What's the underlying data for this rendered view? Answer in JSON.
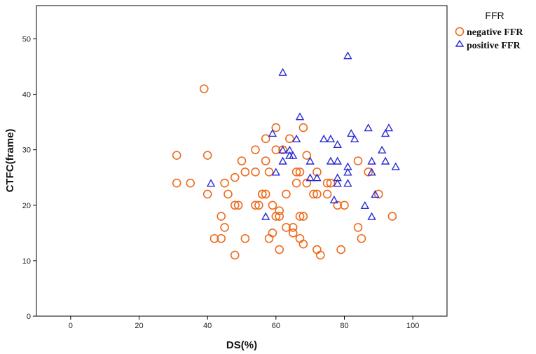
{
  "chart_data": {
    "type": "scatter",
    "xlabel": "DS(%)",
    "ylabel": "CTFC(frame)",
    "xlim": [
      -10,
      110
    ],
    "ylim": [
      0,
      56
    ],
    "xticks": [
      "0",
      "20",
      "40",
      "60",
      "80",
      "100"
    ],
    "yticks": [
      "0",
      "10",
      "20",
      "30",
      "40",
      "50"
    ],
    "grid": false,
    "legend": {
      "title": "FFR",
      "position": "top-right"
    },
    "series": [
      {
        "name": "negative FFR",
        "marker": "circle",
        "color": "#ee6a1c",
        "points": [
          [
            31,
            29
          ],
          [
            31,
            24
          ],
          [
            35,
            24
          ],
          [
            39,
            41
          ],
          [
            40,
            29
          ],
          [
            40,
            22
          ],
          [
            42,
            14
          ],
          [
            44,
            14
          ],
          [
            44,
            18
          ],
          [
            45,
            24
          ],
          [
            45,
            16
          ],
          [
            46,
            22
          ],
          [
            48,
            20
          ],
          [
            48,
            11
          ],
          [
            48,
            25
          ],
          [
            49,
            20
          ],
          [
            50,
            28
          ],
          [
            51,
            26
          ],
          [
            51,
            14
          ],
          [
            54,
            30
          ],
          [
            54,
            26
          ],
          [
            54,
            20
          ],
          [
            55,
            20
          ],
          [
            56,
            22
          ],
          [
            56,
            22
          ],
          [
            57,
            32
          ],
          [
            57,
            22
          ],
          [
            57,
            28
          ],
          [
            58,
            26
          ],
          [
            58,
            14
          ],
          [
            59,
            15
          ],
          [
            59,
            20
          ],
          [
            60,
            34
          ],
          [
            60,
            30
          ],
          [
            60,
            18
          ],
          [
            61,
            19
          ],
          [
            61,
            18
          ],
          [
            61,
            12
          ],
          [
            62,
            30
          ],
          [
            63,
            22
          ],
          [
            63,
            16
          ],
          [
            64,
            32
          ],
          [
            65,
            16
          ],
          [
            65,
            15
          ],
          [
            66,
            26
          ],
          [
            66,
            24
          ],
          [
            67,
            26
          ],
          [
            67,
            18
          ],
          [
            67,
            14
          ],
          [
            68,
            34
          ],
          [
            68,
            18
          ],
          [
            68,
            13
          ],
          [
            69,
            24
          ],
          [
            69,
            29
          ],
          [
            71,
            22
          ],
          [
            72,
            26
          ],
          [
            72,
            22
          ],
          [
            72,
            12
          ],
          [
            73,
            11
          ],
          [
            75,
            24
          ],
          [
            75,
            22
          ],
          [
            76,
            24
          ],
          [
            78,
            20
          ],
          [
            79,
            12
          ],
          [
            80,
            20
          ],
          [
            84,
            28
          ],
          [
            84,
            16
          ],
          [
            85,
            14
          ],
          [
            87,
            26
          ],
          [
            90,
            22
          ],
          [
            94,
            18
          ]
        ]
      },
      {
        "name": "positive FFR",
        "marker": "triangle",
        "color": "#2b2bd6",
        "points": [
          [
            41,
            24
          ],
          [
            57,
            18
          ],
          [
            59,
            33
          ],
          [
            60,
            26
          ],
          [
            62,
            44
          ],
          [
            62,
            28
          ],
          [
            62,
            30
          ],
          [
            64,
            29
          ],
          [
            64,
            30
          ],
          [
            65,
            29
          ],
          [
            66,
            32
          ],
          [
            67,
            36
          ],
          [
            70,
            28
          ],
          [
            70,
            25
          ],
          [
            72,
            25
          ],
          [
            74,
            32
          ],
          [
            76,
            32
          ],
          [
            76,
            28
          ],
          [
            77,
            21
          ],
          [
            78,
            31
          ],
          [
            78,
            28
          ],
          [
            78,
            24
          ],
          [
            78,
            25
          ],
          [
            81,
            47
          ],
          [
            81,
            27
          ],
          [
            81,
            24
          ],
          [
            81,
            26
          ],
          [
            82,
            33
          ],
          [
            83,
            32
          ],
          [
            86,
            20
          ],
          [
            87,
            34
          ],
          [
            88,
            28
          ],
          [
            88,
            26
          ],
          [
            88,
            18
          ],
          [
            89,
            22
          ],
          [
            91,
            30
          ],
          [
            92,
            33
          ],
          [
            92,
            28
          ],
          [
            93,
            34
          ],
          [
            95,
            27
          ]
        ]
      }
    ]
  }
}
